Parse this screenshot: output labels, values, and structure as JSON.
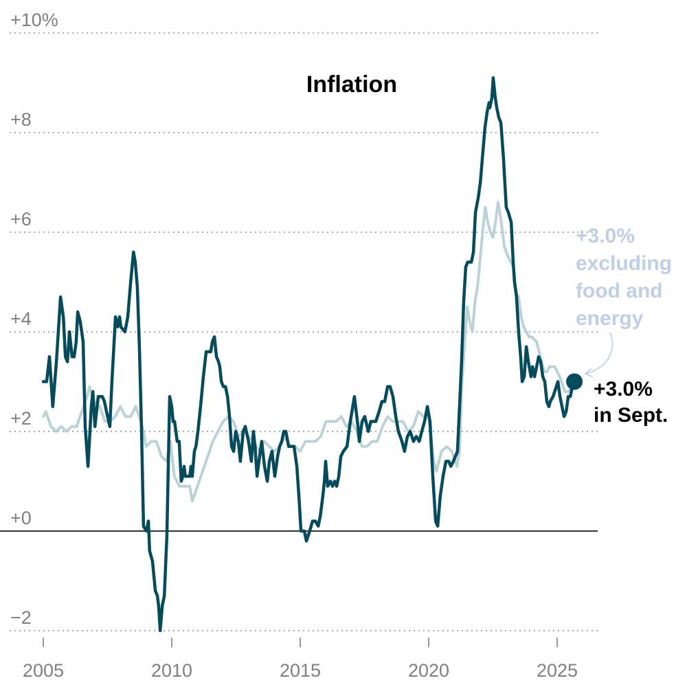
{
  "chart_data": {
    "type": "line",
    "title": "Inflation",
    "xlabel": "",
    "ylabel": "",
    "xlim": [
      2004.85,
      2027.2
    ],
    "ylim": [
      -2.2,
      10
    ],
    "grid": true,
    "x_ticks": [
      2005,
      2010,
      2015,
      2020,
      2025
    ],
    "x_tick_labels": [
      "2005",
      "2010",
      "2015",
      "2020",
      "2025"
    ],
    "y_ticks": [
      -2,
      0,
      2,
      4,
      6,
      8,
      10
    ],
    "y_tick_labels": [
      "−2",
      "+0",
      "+2",
      "+4",
      "+6",
      "+8",
      "+10%"
    ],
    "colors": {
      "headline": "#054b5c",
      "core": "#bcd2d7",
      "core_label": "#bfcfe6",
      "grid": "#aaaaaa",
      "zero_line": "#333333"
    },
    "annotations": {
      "core_lines": [
        "+3.0%",
        "excluding",
        "food and",
        "energy"
      ],
      "headline_lines": [
        "+3.0%",
        "in Sept."
      ]
    },
    "series": [
      {
        "key": "core",
        "x": [
          2005.0,
          2005.1,
          2005.3,
          2005.5,
          2005.7,
          2005.9,
          2006.1,
          2006.3,
          2006.5,
          2006.7,
          2006.8,
          2006.9,
          2007.0,
          2007.2,
          2007.4,
          2007.6,
          2007.8,
          2008.0,
          2008.2,
          2008.4,
          2008.6,
          2008.8,
          2008.9,
          2009.0,
          2009.2,
          2009.4,
          2009.6,
          2009.8,
          2009.95,
          2010.1,
          2010.3,
          2010.5,
          2010.7,
          2010.8,
          2011.0,
          2011.2,
          2011.4,
          2011.6,
          2011.8,
          2012.0,
          2012.2,
          2012.4,
          2012.6,
          2012.8,
          2013.0,
          2013.2,
          2013.4,
          2013.6,
          2013.8,
          2014.0,
          2014.2,
          2014.4,
          2014.6,
          2014.8,
          2015.0,
          2015.2,
          2015.4,
          2015.6,
          2015.8,
          2016.0,
          2016.2,
          2016.4,
          2016.6,
          2016.8,
          2017.0,
          2017.2,
          2017.4,
          2017.6,
          2017.8,
          2018.0,
          2018.2,
          2018.4,
          2018.6,
          2018.8,
          2019.0,
          2019.2,
          2019.4,
          2019.6,
          2019.8,
          2020.0,
          2020.2,
          2020.3,
          2020.5,
          2020.7,
          2020.9,
          2021.1,
          2021.2,
          2021.3,
          2021.4,
          2021.5,
          2021.6,
          2021.7,
          2021.8,
          2021.9,
          2022.1,
          2022.2,
          2022.3,
          2022.4,
          2022.5,
          2022.6,
          2022.7,
          2022.8,
          2022.95,
          2023.1,
          2023.3,
          2023.4,
          2023.5,
          2023.6,
          2023.7,
          2023.9,
          2024.0,
          2024.2,
          2024.3,
          2024.5,
          2024.6,
          2024.7,
          2024.9,
          2025.0,
          2025.1,
          2025.3,
          2025.45,
          2025.55,
          2025.67
        ],
        "y": [
          2.3,
          2.4,
          2.1,
          2.0,
          2.1,
          2.0,
          2.1,
          2.1,
          2.4,
          2.7,
          2.9,
          2.7,
          2.6,
          2.5,
          2.2,
          2.2,
          2.3,
          2.5,
          2.3,
          2.3,
          2.5,
          2.2,
          2.0,
          1.7,
          1.8,
          1.8,
          1.5,
          1.4,
          1.8,
          1.1,
          0.9,
          0.9,
          0.9,
          0.6,
          0.9,
          1.2,
          1.5,
          1.8,
          2.0,
          2.2,
          2.3,
          2.2,
          1.9,
          2.0,
          1.9,
          1.8,
          1.6,
          1.8,
          1.7,
          1.6,
          1.7,
          1.9,
          1.7,
          1.7,
          1.6,
          1.8,
          1.8,
          1.8,
          1.9,
          2.2,
          2.2,
          2.2,
          2.3,
          2.1,
          2.2,
          2.0,
          1.7,
          1.7,
          1.8,
          1.8,
          2.1,
          2.3,
          2.2,
          2.2,
          2.2,
          2.0,
          2.1,
          2.4,
          2.3,
          2.3,
          1.4,
          1.2,
          1.6,
          1.7,
          1.6,
          1.3,
          1.6,
          3.0,
          3.8,
          4.5,
          4.2,
          4.0,
          4.6,
          4.9,
          6.0,
          6.5,
          6.2,
          6.0,
          5.9,
          6.2,
          6.6,
          6.3,
          5.7,
          5.5,
          5.3,
          4.8,
          4.7,
          4.3,
          4.1,
          3.9,
          3.9,
          3.8,
          3.6,
          3.2,
          3.2,
          3.3,
          3.3,
          3.2,
          3.1,
          2.8,
          2.8,
          2.9,
          3.0
        ]
      },
      {
        "key": "headline",
        "x": [
          2005.0,
          2005.13,
          2005.24,
          2005.37,
          2005.51,
          2005.67,
          2005.78,
          2005.86,
          2005.94,
          2006.02,
          2006.12,
          2006.2,
          2006.28,
          2006.34,
          2006.44,
          2006.55,
          2006.63,
          2006.74,
          2006.87,
          2006.93,
          2007.01,
          2007.14,
          2007.22,
          2007.3,
          2007.38,
          2007.46,
          2007.59,
          2007.67,
          2007.81,
          2007.89,
          2007.97,
          2008.02,
          2008.18,
          2008.29,
          2008.4,
          2008.51,
          2008.58,
          2008.66,
          2008.74,
          2008.82,
          2008.9,
          2009.01,
          2009.09,
          2009.14,
          2009.25,
          2009.36,
          2009.44,
          2009.49,
          2009.55,
          2009.63,
          2009.71,
          2009.81,
          2009.92,
          2010.0,
          2010.05,
          2010.11,
          2010.16,
          2010.21,
          2010.29,
          2010.37,
          2010.43,
          2010.48,
          2010.53,
          2010.61,
          2010.7,
          2010.75,
          2010.8,
          2010.88,
          2010.94,
          2011.02,
          2011.12,
          2011.23,
          2011.34,
          2011.44,
          2011.52,
          2011.58,
          2011.66,
          2011.74,
          2011.82,
          2011.87,
          2011.93,
          2012.01,
          2012.09,
          2012.17,
          2012.25,
          2012.33,
          2012.41,
          2012.49,
          2012.59,
          2012.67,
          2012.78,
          2012.86,
          2012.99,
          2013.1,
          2013.18,
          2013.24,
          2013.32,
          2013.42,
          2013.5,
          2013.61,
          2013.72,
          2013.8,
          2013.9,
          2014.01,
          2014.12,
          2014.2,
          2014.28,
          2014.36,
          2014.44,
          2014.55,
          2014.65,
          2014.76,
          2014.87,
          2014.95,
          2015.03,
          2015.16,
          2015.24,
          2015.37,
          2015.48,
          2015.59,
          2015.7,
          2015.78,
          2015.88,
          2015.94,
          2015.99,
          2016.07,
          2016.18,
          2016.26,
          2016.34,
          2016.42,
          2016.5,
          2016.58,
          2016.68,
          2016.82,
          2016.95,
          2017.11,
          2017.25,
          2017.3,
          2017.41,
          2017.51,
          2017.65,
          2017.75,
          2017.83,
          2017.94,
          2018.07,
          2018.18,
          2018.29,
          2018.4,
          2018.5,
          2018.61,
          2018.72,
          2018.82,
          2018.96,
          2019.06,
          2019.17,
          2019.28,
          2019.41,
          2019.52,
          2019.63,
          2019.73,
          2019.84,
          2019.95,
          2020.05,
          2020.16,
          2020.27,
          2020.35,
          2020.45,
          2020.56,
          2020.67,
          2020.78,
          2020.86,
          2020.96,
          2021.04,
          2021.12,
          2021.2,
          2021.28,
          2021.36,
          2021.44,
          2021.52,
          2021.6,
          2021.66,
          2021.74,
          2021.82,
          2021.93,
          2022.01,
          2022.09,
          2022.19,
          2022.27,
          2022.35,
          2022.38,
          2022.46,
          2022.51,
          2022.59,
          2022.65,
          2022.73,
          2022.81,
          2022.91,
          2023.02,
          2023.1,
          2023.21,
          2023.29,
          2023.34,
          2023.42,
          2023.5,
          2023.58,
          2023.64,
          2023.72,
          2023.8,
          2023.88,
          2023.98,
          2024.04,
          2024.12,
          2024.2,
          2024.28,
          2024.36,
          2024.44,
          2024.52,
          2024.6,
          2024.68,
          2024.73,
          2024.84,
          2025.03,
          2025.11,
          2025.19,
          2025.27,
          2025.35,
          2025.43,
          2025.51,
          2025.59,
          2025.67
        ],
        "y": [
          3.0,
          3.0,
          3.5,
          2.5,
          3.4,
          4.7,
          4.3,
          3.5,
          3.4,
          4.0,
          3.5,
          3.5,
          3.8,
          4.4,
          4.2,
          3.8,
          2.1,
          1.3,
          2.5,
          2.8,
          2.1,
          2.7,
          2.7,
          2.7,
          2.6,
          2.4,
          2.1,
          3.0,
          4.3,
          4.1,
          4.3,
          4.1,
          4.0,
          4.3,
          5.0,
          5.6,
          5.4,
          4.9,
          3.7,
          2.1,
          0.1,
          0.0,
          0.2,
          -0.4,
          -0.6,
          -1.2,
          -1.3,
          -1.5,
          -2.0,
          -1.5,
          -1.3,
          -0.1,
          2.7,
          2.5,
          2.2,
          2.2,
          2.0,
          1.8,
          1.8,
          1.0,
          1.1,
          1.3,
          1.1,
          1.1,
          1.1,
          1.3,
          1.1,
          1.6,
          1.7,
          2.0,
          2.5,
          3.1,
          3.6,
          3.6,
          3.6,
          3.8,
          3.9,
          3.5,
          3.4,
          3.3,
          3.0,
          2.9,
          2.9,
          2.7,
          2.3,
          1.7,
          1.6,
          2.0,
          1.8,
          1.4,
          2.0,
          2.1,
          1.8,
          1.4,
          2.0,
          1.7,
          1.1,
          1.5,
          1.8,
          1.3,
          1.0,
          1.4,
          1.6,
          1.1,
          1.5,
          1.7,
          1.8,
          2.0,
          2.0,
          1.7,
          1.7,
          1.7,
          1.3,
          0.7,
          0.0,
          0.0,
          -0.2,
          0.0,
          0.2,
          0.2,
          0.1,
          0.3,
          0.7,
          1.0,
          1.4,
          0.9,
          1.0,
          0.9,
          1.0,
          0.9,
          1.1,
          1.5,
          1.6,
          1.7,
          2.2,
          2.7,
          2.1,
          1.8,
          2.2,
          2.3,
          2.0,
          2.2,
          2.2,
          2.2,
          2.4,
          2.6,
          2.6,
          2.9,
          2.9,
          2.7,
          2.3,
          2.0,
          1.8,
          1.6,
          1.9,
          2.0,
          1.8,
          1.9,
          1.8,
          2.0,
          2.2,
          2.5,
          2.2,
          1.1,
          0.2,
          0.1,
          0.7,
          1.1,
          1.4,
          1.4,
          1.3,
          1.4,
          1.5,
          1.6,
          2.5,
          3.4,
          4.6,
          5.3,
          5.4,
          5.4,
          5.4,
          5.6,
          6.4,
          6.7,
          7.0,
          7.5,
          8.1,
          8.4,
          8.6,
          8.5,
          8.7,
          9.1,
          8.7,
          8.5,
          8.3,
          8.2,
          7.5,
          6.5,
          6.4,
          6.2,
          5.4,
          5.0,
          4.7,
          4.0,
          3.5,
          3.0,
          3.1,
          3.7,
          3.4,
          3.1,
          3.3,
          3.1,
          3.3,
          3.5,
          3.4,
          3.1,
          3.0,
          2.6,
          2.5,
          2.6,
          2.7,
          3.0,
          2.7,
          2.5,
          2.3,
          2.4,
          2.7,
          2.7,
          2.9,
          3.0
        ]
      }
    ]
  }
}
